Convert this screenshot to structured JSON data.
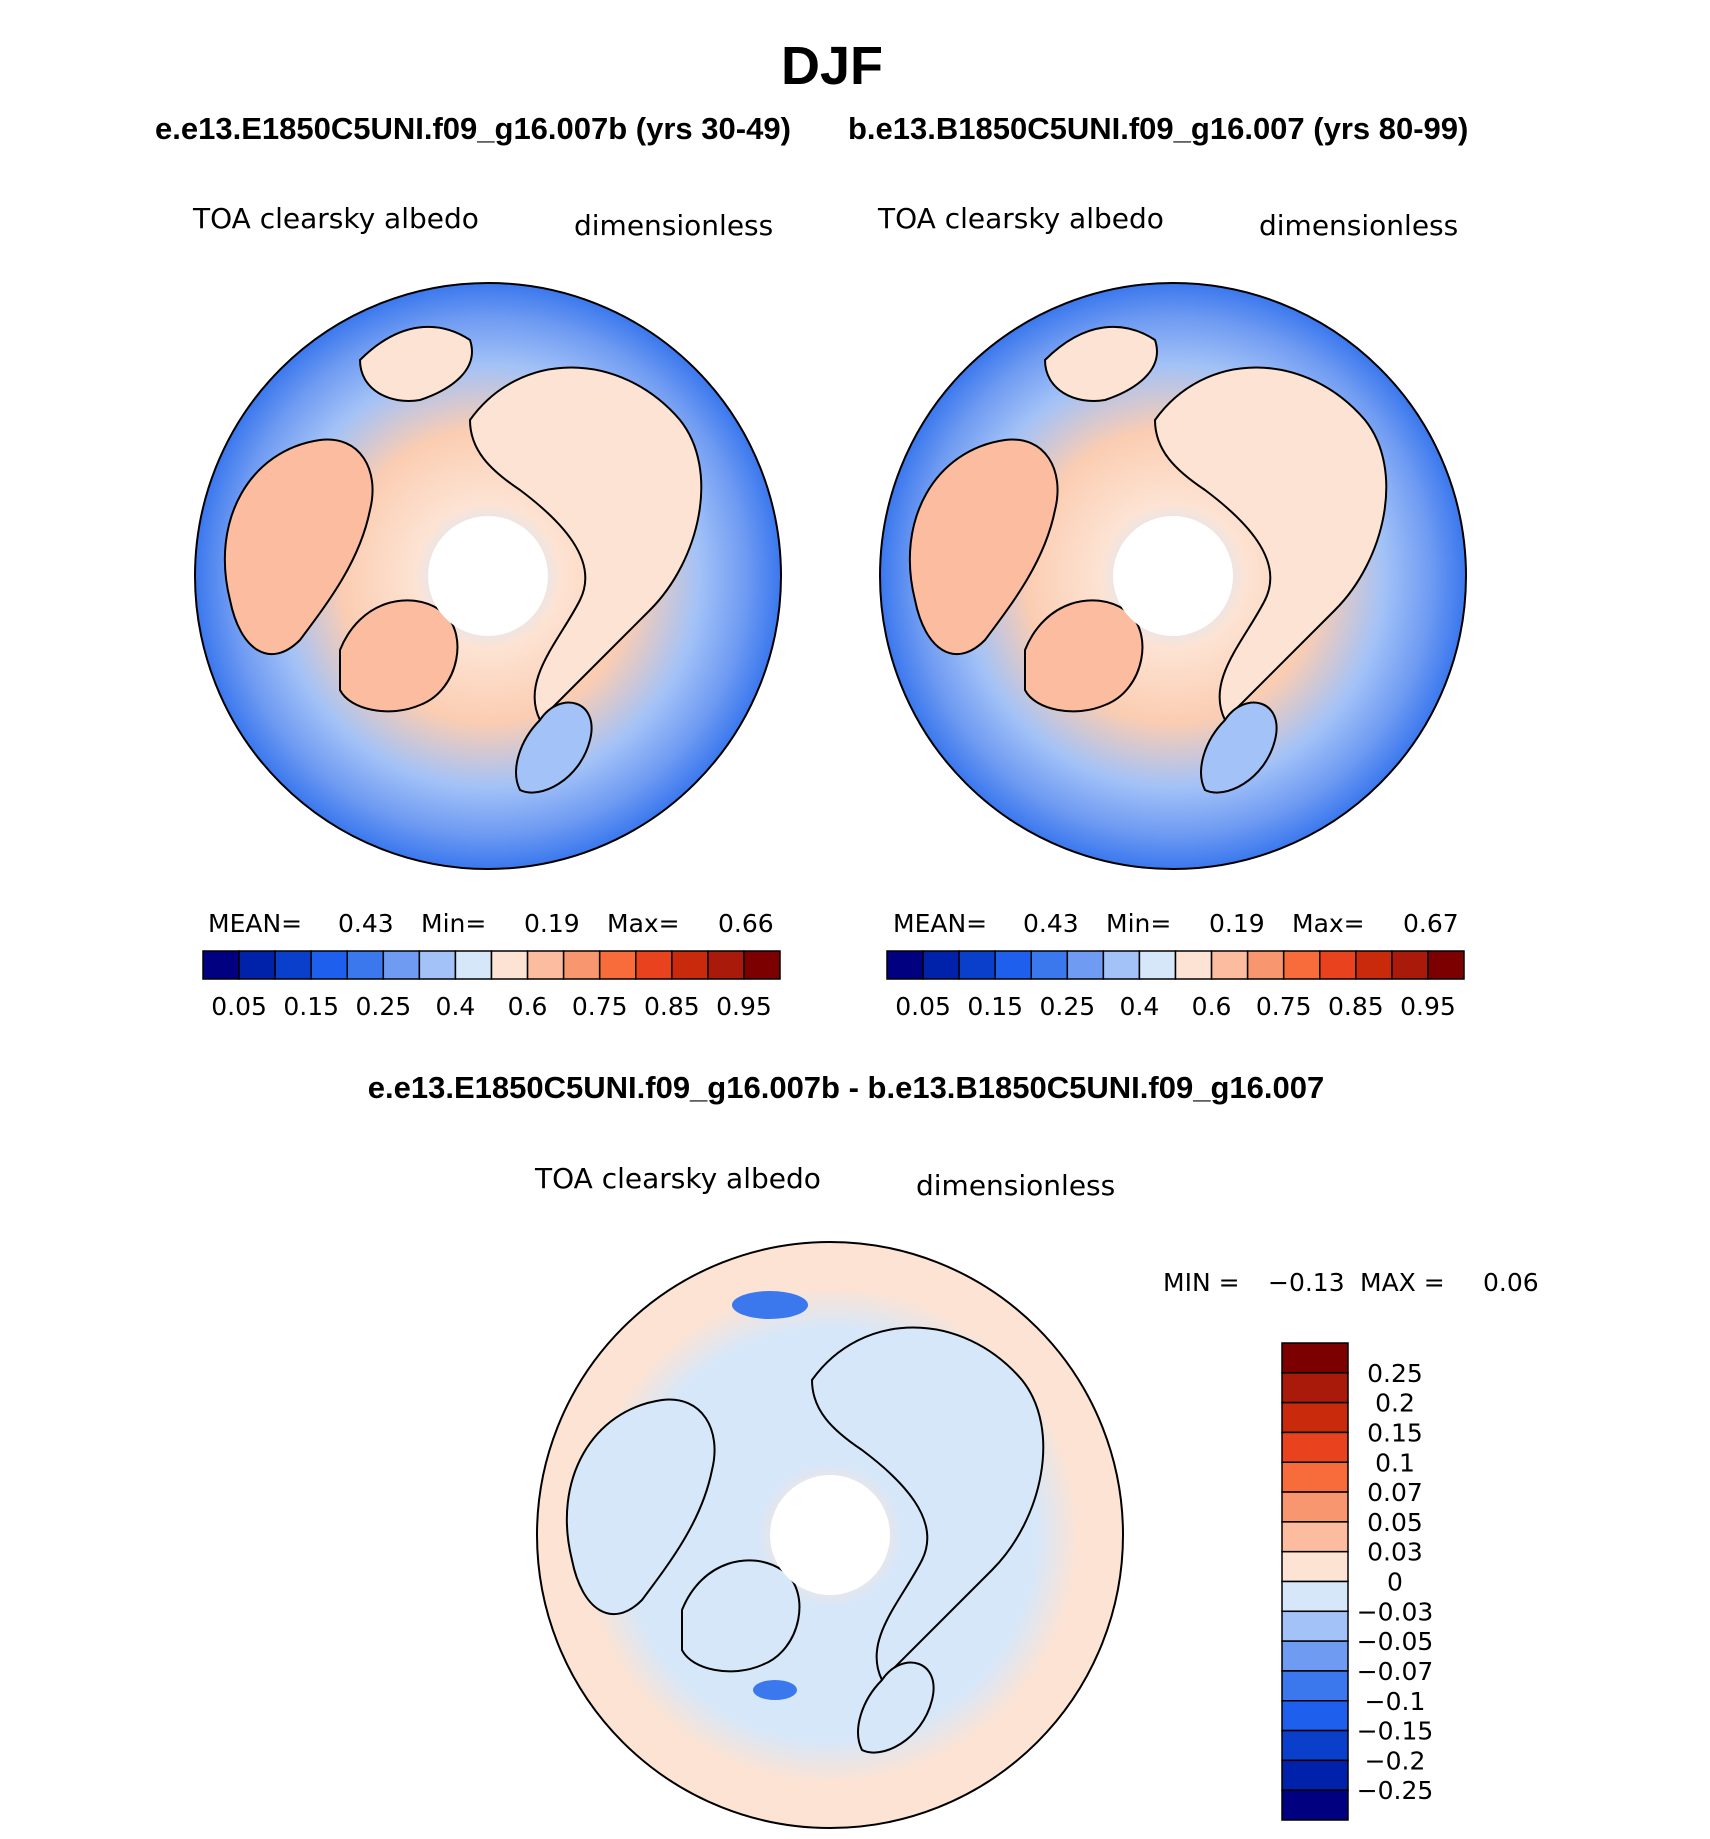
{
  "title": "DJF",
  "subtitle_left": "e.e13.E1850C5UNI.f09_g16.007b (yrs 30-49)",
  "subtitle_right": "b.e13.B1850C5UNI.f09_g16.007 (yrs 80-99)",
  "diff_title": "e.e13.E1850C5UNI.f09_g16.007b - b.e13.B1850C5UNI.f09_g16.007",
  "colors": {
    "abs_scale": [
      "#000080",
      "#0022aa",
      "#0a3fcc",
      "#1f5fee",
      "#3b78ee",
      "#6f9bf2",
      "#a3c2f7",
      "#d6e7fa",
      "#fde3d3",
      "#fbbca0",
      "#f89670",
      "#f76c3a",
      "#e8421e",
      "#c92a0c",
      "#a91a0a",
      "#7d0000"
    ],
    "diff_scale": [
      "#7d0000",
      "#a91a0a",
      "#c92a0c",
      "#e8421e",
      "#f76c3a",
      "#f89670",
      "#fbbca0",
      "#fde3d3",
      "#d6e7fa",
      "#a3c2f7",
      "#6f9bf2",
      "#3b78ee",
      "#1f5fee",
      "#0a3fcc",
      "#0022aa",
      "#000080"
    ],
    "coastline": "#000000"
  },
  "chart_data": [
    {
      "type": "heatmap",
      "projection": "north-polar-stereographic",
      "panel": "top-left",
      "variable_label": "TOA clearsky albedo",
      "units": "dimensionless",
      "stats": {
        "mean_label": "MEAN=",
        "mean": "0.43",
        "min_label": "Min=",
        "min": "0.19",
        "max_label": "Max=",
        "max": "0.66"
      },
      "colorbar_ticks": [
        "0.05",
        "0.15",
        "0.25",
        "0.4",
        "0.6",
        "0.75",
        "0.85",
        "0.95"
      ],
      "colorbar_orientation": "horizontal"
    },
    {
      "type": "heatmap",
      "projection": "north-polar-stereographic",
      "panel": "top-right",
      "variable_label": "TOA clearsky albedo",
      "units": "dimensionless",
      "stats": {
        "mean_label": "MEAN=",
        "mean": "0.43",
        "min_label": "Min=",
        "min": "0.19",
        "max_label": "Max=",
        "max": "0.67"
      },
      "colorbar_ticks": [
        "0.05",
        "0.15",
        "0.25",
        "0.4",
        "0.6",
        "0.75",
        "0.85",
        "0.95"
      ],
      "colorbar_orientation": "horizontal"
    },
    {
      "type": "heatmap",
      "projection": "north-polar-stereographic",
      "panel": "bottom",
      "variable_label": "TOA clearsky albedo",
      "units": "dimensionless",
      "stats": {
        "min_label": "MIN =",
        "min": "−0.13",
        "max_label": "MAX =",
        "max": "0.06"
      },
      "colorbar_ticks": [
        "0.25",
        "0.2",
        "0.15",
        "0.1",
        "0.07",
        "0.05",
        "0.03",
        "0",
        "−0.03",
        "−0.05",
        "−0.07",
        "−0.1",
        "−0.15",
        "−0.2",
        "−0.25"
      ],
      "colorbar_orientation": "vertical"
    }
  ]
}
